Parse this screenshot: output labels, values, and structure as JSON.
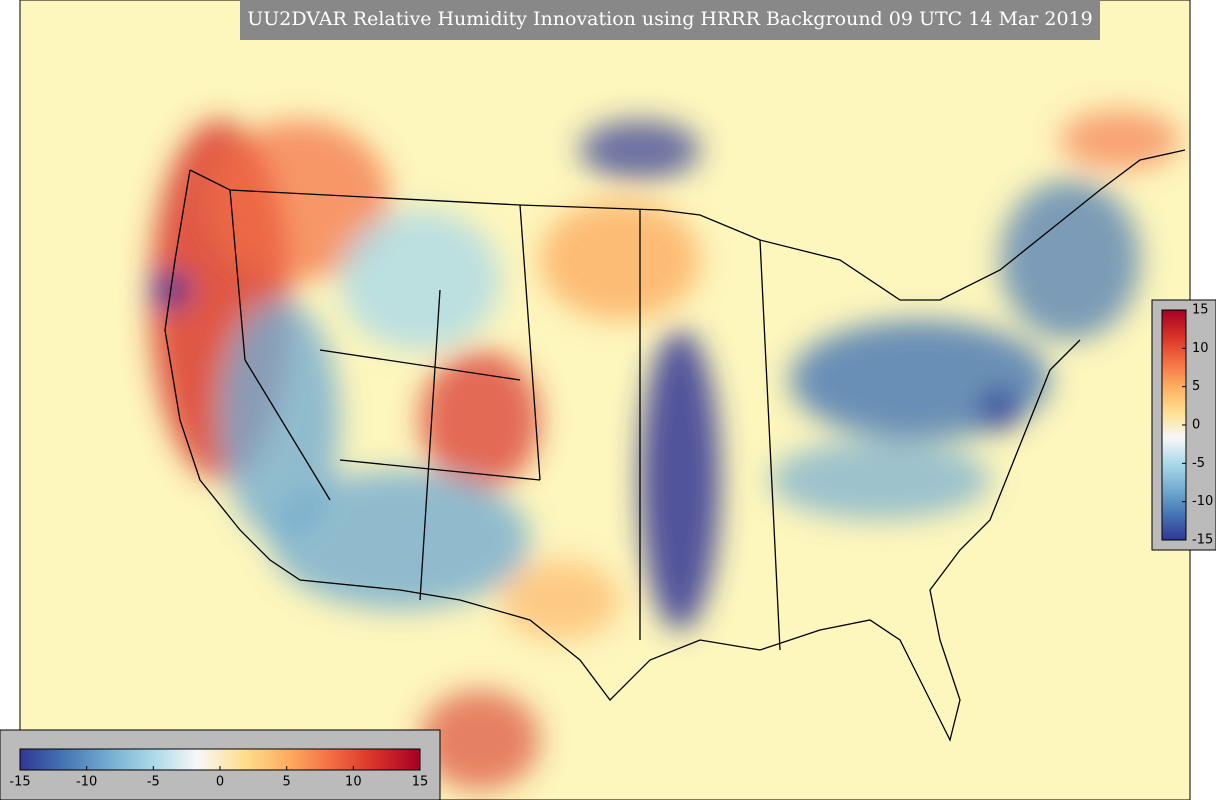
{
  "title": "UU2DVAR Relative Humidity Innovation using HRRR Background 09 UTC 14 Mar 2019",
  "colorbar": {
    "lim": [
      -15,
      15
    ],
    "ticks": [
      -15,
      -10,
      -5,
      0,
      5,
      10,
      15
    ],
    "colors": [
      "#313695",
      "#4575b4",
      "#74add1",
      "#abd9e9",
      "#f7f7f7",
      "#fee090",
      "#fdae61",
      "#f46d43",
      "#d73027",
      "#a50026"
    ]
  }
}
